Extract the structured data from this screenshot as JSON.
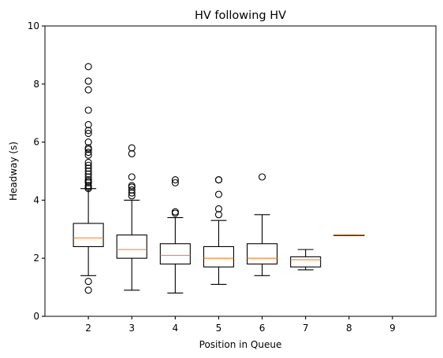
{
  "chart_data": {
    "type": "boxplot",
    "title": "HV following HV",
    "xlabel": "Position in Queue",
    "ylabel": "Headway (s)",
    "ylim": [
      0,
      10
    ],
    "xlim": [
      1,
      10
    ],
    "yticks": [
      0,
      2,
      4,
      6,
      8,
      10
    ],
    "grid": false,
    "colors": {
      "box": "#000000",
      "median": "#ff7f0e",
      "frame": "#000000",
      "background": "#ffffff"
    },
    "boxes": [
      {
        "position": 2,
        "label": "2",
        "whisker_low": 1.4,
        "q1": 2.4,
        "median": 2.7,
        "q3": 3.2,
        "whisker_high": 4.4,
        "outliers": [
          0.9,
          1.2,
          4.4,
          4.45,
          4.5,
          4.6,
          4.65,
          4.7,
          4.8,
          4.9,
          5.0,
          5.1,
          5.2,
          5.3,
          5.55,
          5.65,
          5.75,
          5.8,
          6.0,
          6.3,
          6.4,
          6.6,
          7.1,
          7.8,
          8.1,
          8.6
        ]
      },
      {
        "position": 3,
        "label": "3",
        "whisker_low": 0.9,
        "q1": 2.0,
        "median": 2.3,
        "q3": 2.8,
        "whisker_high": 4.0,
        "outliers": [
          4.15,
          4.25,
          4.35,
          4.45,
          4.5,
          4.8,
          5.6,
          5.8
        ]
      },
      {
        "position": 4,
        "label": "4",
        "whisker_low": 0.8,
        "q1": 1.8,
        "median": 2.1,
        "q3": 2.5,
        "whisker_high": 3.4,
        "outliers": [
          3.55,
          3.6,
          4.6,
          4.7
        ]
      },
      {
        "position": 5,
        "label": "5",
        "whisker_low": 1.1,
        "q1": 1.7,
        "median": 2.0,
        "q3": 2.4,
        "whisker_high": 3.3,
        "outliers": [
          3.5,
          3.7,
          4.2,
          4.7,
          4.7
        ]
      },
      {
        "position": 6,
        "label": "6",
        "whisker_low": 1.4,
        "q1": 1.8,
        "median": 2.0,
        "q3": 2.5,
        "whisker_high": 3.5,
        "outliers": [
          4.8
        ]
      },
      {
        "position": 7,
        "label": "7",
        "whisker_low": 1.6,
        "q1": 1.7,
        "median": 1.95,
        "q3": 2.05,
        "whisker_high": 2.3,
        "outliers": []
      },
      {
        "position": 8,
        "label": "8",
        "whisker_low": 2.8,
        "q1": 2.8,
        "median": 2.8,
        "q3": 2.8,
        "whisker_high": 2.8,
        "outliers": []
      },
      {
        "position": 9,
        "label": "9",
        "empty": true
      }
    ]
  }
}
